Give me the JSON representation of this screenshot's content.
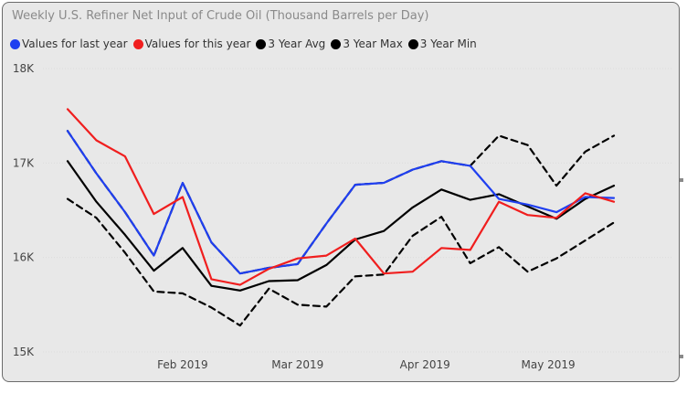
{
  "chart_data": {
    "type": "line",
    "title": "Weekly U.S. Refiner Net Input of Crude Oil  (Thousand Barrels per Day)",
    "xlabel": "",
    "ylabel": "",
    "ylim": [
      15000,
      18000
    ],
    "yticks": [
      {
        "value": 15000,
        "label": "15K"
      },
      {
        "value": 16000,
        "label": "16K"
      },
      {
        "value": 17000,
        "label": "17K"
      },
      {
        "value": 18000,
        "label": "18K"
      }
    ],
    "x": [
      "2019-01-04",
      "2019-01-11",
      "2019-01-18",
      "2019-01-25",
      "2019-02-01",
      "2019-02-08",
      "2019-02-15",
      "2019-02-22",
      "2019-03-01",
      "2019-03-08",
      "2019-03-15",
      "2019-03-22",
      "2019-03-29",
      "2019-04-05",
      "2019-04-12",
      "2019-04-19",
      "2019-04-26",
      "2019-05-03",
      "2019-05-10",
      "2019-05-17",
      "2019-05-24"
    ],
    "xlim": [
      "2018-12-29",
      "2019-05-31"
    ],
    "xticks": [
      {
        "date": "2019-02-01",
        "label": "Feb 2019"
      },
      {
        "date": "2019-03-01",
        "label": "Mar 2019"
      },
      {
        "date": "2019-04-01",
        "label": "Apr 2019"
      },
      {
        "date": "2019-05-01",
        "label": "May 2019"
      }
    ],
    "grid": true,
    "legend_position": "top-left",
    "series": [
      {
        "name": "3 Year Min",
        "color": "#000000",
        "style": "dashed",
        "values": [
          16620,
          16420,
          16050,
          15640,
          15620,
          15470,
          15280,
          15670,
          15500,
          15480,
          15800,
          15820,
          16230,
          16430,
          15940,
          16110,
          15850,
          15990,
          16180,
          16370,
          null
        ]
      },
      {
        "name": "3 Year Max",
        "color": "#000000",
        "style": "dashed",
        "values": [
          17340,
          16890,
          16480,
          16020,
          16790,
          16160,
          15830,
          15890,
          15930,
          16360,
          16770,
          16790,
          16930,
          17020,
          16970,
          17290,
          17190,
          16760,
          17120,
          17290,
          null
        ]
      },
      {
        "name": "3 Year Avg",
        "color": "#000000",
        "style": "solid",
        "values": [
          17020,
          16590,
          16240,
          15860,
          16100,
          15700,
          15650,
          15750,
          15760,
          15920,
          16190,
          16280,
          16530,
          16720,
          16610,
          16670,
          16540,
          16410,
          16620,
          16760,
          null
        ]
      },
      {
        "name": "Values for last year",
        "color": "#1f3ff0",
        "style": "solid",
        "values": [
          17340,
          16890,
          16480,
          16020,
          16790,
          16160,
          15830,
          15890,
          15930,
          16360,
          16770,
          16790,
          16930,
          17020,
          16970,
          16620,
          16560,
          16480,
          16640,
          16630,
          null
        ]
      },
      {
        "name": "Values for this year",
        "color": "#f01e1e",
        "style": "solid",
        "values": [
          17570,
          17240,
          17070,
          16460,
          16640,
          15770,
          15710,
          15880,
          15990,
          16020,
          16200,
          15830,
          15850,
          16100,
          16080,
          16590,
          16450,
          16420,
          16680,
          16590,
          null
        ]
      }
    ]
  },
  "legend": [
    {
      "label": "Values for last year",
      "color": "#1f3ff0"
    },
    {
      "label": "Values for this year",
      "color": "#f01e1e"
    },
    {
      "label": "3 Year Avg",
      "color": "#000000"
    },
    {
      "label": "3 Year Max",
      "color": "#000000"
    },
    {
      "label": "3 Year Min",
      "color": "#000000"
    }
  ]
}
